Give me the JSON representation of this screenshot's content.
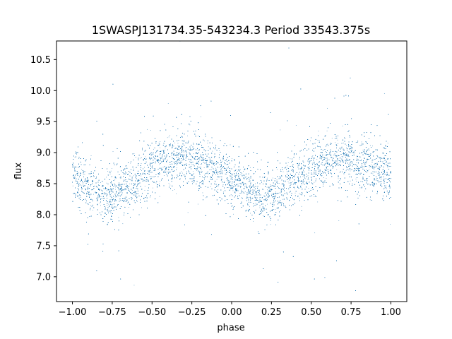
{
  "chart_data": {
    "type": "scatter",
    "title": "1SWASPJ131734.35-543234.3 Period 33543.375s",
    "xlabel": "phase",
    "ylabel": "flux",
    "xlim": [
      -1.1,
      1.1
    ],
    "ylim": [
      6.6,
      10.8
    ],
    "x_ticks": [
      -1.0,
      -0.75,
      -0.5,
      -0.25,
      0.0,
      0.25,
      0.5,
      0.75,
      1.0
    ],
    "x_tick_labels": [
      "−1.00",
      "−0.75",
      "−0.50",
      "−0.25",
      "0.00",
      "0.25",
      "0.50",
      "0.75",
      "1.00"
    ],
    "y_ticks": [
      7.0,
      7.5,
      8.0,
      8.5,
      9.0,
      9.5,
      10.0,
      10.5
    ],
    "y_tick_labels": [
      "7.0",
      "7.5",
      "8.0",
      "8.5",
      "9.0",
      "9.5",
      "10.0",
      "10.5"
    ],
    "grid": false,
    "marker_color": "#1f77b4",
    "series": [
      {
        "x": [
          -1.0,
          -0.9,
          -0.8,
          -0.75,
          -0.7,
          -0.6,
          -0.5,
          -0.4,
          -0.3,
          -0.25,
          -0.2,
          -0.1,
          0.0,
          0.1,
          0.2,
          0.25,
          0.3,
          0.4,
          0.5,
          0.6,
          0.7,
          0.75,
          0.8,
          0.9,
          1.0
        ],
        "y": [
          8.65,
          8.42,
          8.3,
          8.32,
          8.4,
          8.58,
          8.78,
          8.88,
          8.92,
          8.9,
          8.85,
          8.72,
          8.58,
          8.38,
          8.28,
          8.3,
          8.4,
          8.58,
          8.75,
          8.86,
          8.9,
          8.88,
          8.82,
          8.72,
          8.65
        ]
      }
    ],
    "scatter_sd": 0.22,
    "point_count": 18000
  }
}
